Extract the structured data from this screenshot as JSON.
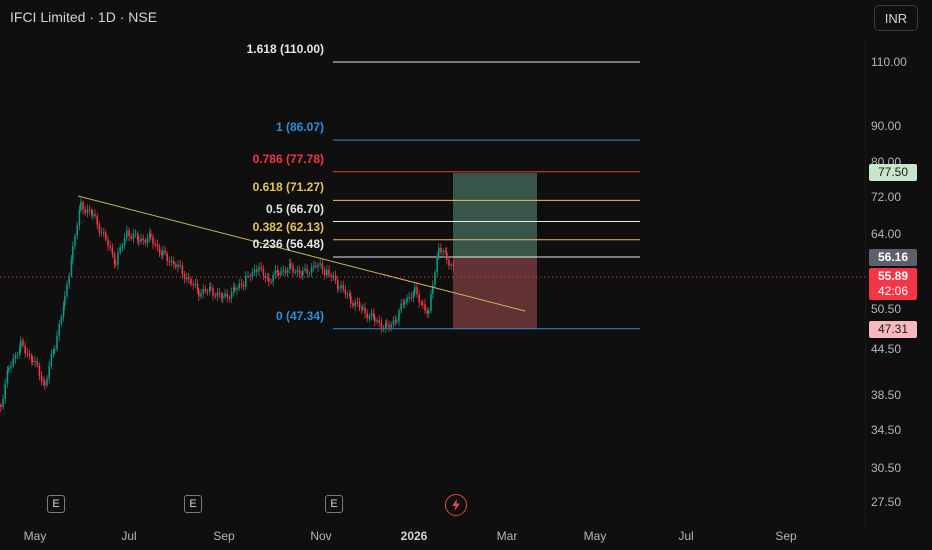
{
  "header": {
    "title": "IFCI Limited · 1D · NSE",
    "currency": "INR"
  },
  "price_axis": [
    "110.00",
    "90.00",
    "80.00",
    "72.00",
    "64.00",
    "50.50",
    "44.50",
    "38.50",
    "34.50",
    "30.50",
    "27.50"
  ],
  "date_axis": [
    "May",
    "Jul",
    "Sep",
    "Nov",
    "2026",
    "Mar",
    "May",
    "Jul",
    "Sep"
  ],
  "fib_levels": [
    {
      "label": "1.618 (110.00)",
      "price": 110.0,
      "color": "#e6e6e6"
    },
    {
      "label": "1 (86.07)",
      "price": 86.07,
      "color": "#2e8ed8"
    },
    {
      "label": "0.786 (77.78)",
      "price": 77.78,
      "color": "#f23645"
    },
    {
      "label": "0.618 (71.27)",
      "price": 71.27,
      "color": "#e8c25c"
    },
    {
      "label": "0.5 (66.70)",
      "price": 66.7,
      "color": "#e6e6e6"
    },
    {
      "label": "0.382 (62.13)",
      "price": 62.13,
      "color": "#e8c25c"
    },
    {
      "label": "0.236 (56.48)",
      "price": 56.48,
      "color": "#e6e6e6"
    },
    {
      "label": "0 (47.34)",
      "price": 47.34,
      "color": "#2e8ed8"
    }
  ],
  "price_tags": {
    "target": "77.50",
    "last_high": "56.16",
    "current_price": "55.89",
    "countdown": "42:06",
    "stop": "47.31"
  },
  "markers": {
    "earnings": [
      "E",
      "E",
      "E"
    ],
    "dividend_icon": "lightning-icon"
  },
  "colors": {
    "up": "#089981",
    "down": "#f23645",
    "trendline": "#e8c25c",
    "profit_zone": "#5b8f7a",
    "loss_zone": "#9a4a4f"
  }
}
